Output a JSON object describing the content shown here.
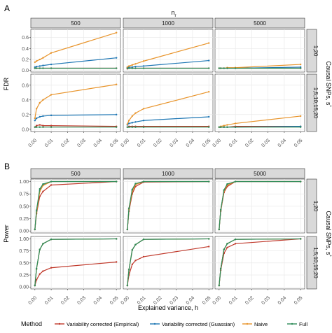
{
  "legend": {
    "title": "Method",
    "entries": [
      {
        "label": "Variability corrected (Empirical)",
        "color": "#c0392b"
      },
      {
        "label": "Variability corrected (Guassian)",
        "color": "#1f77b4"
      },
      {
        "label": "Naive",
        "color": "#e8942b"
      },
      {
        "label": "Full",
        "color": "#2e8b57"
      }
    ]
  },
  "chart_data": [
    {
      "type": "line",
      "panel_label": "A",
      "top_title": "n_r",
      "col_facets": [
        "500",
        "1000",
        "5000"
      ],
      "row_facet_title": "Causal SNPs, s",
      "row_facets": [
        "1,20",
        "1,5,10,15,20"
      ],
      "xlabel": "",
      "ylabel": "FDR",
      "x": [
        0.0,
        0.001,
        0.003,
        0.005,
        0.01,
        0.05
      ],
      "x_ticks": [
        "0.00",
        "0.01",
        "0.02",
        "0.03",
        "0.04",
        "0.05"
      ],
      "y_ticks": [
        "0.0",
        "0.2",
        "0.4",
        "0.6"
      ],
      "ylim": [
        -0.03,
        0.75
      ],
      "xlim": [
        -0.0025,
        0.0525
      ],
      "grid": true,
      "panels": [
        {
          "col": 0,
          "row": 0,
          "series": [
            {
              "name": "Variability corrected (Empirical)",
              "values": [
                0.04,
                0.04,
                0.04,
                0.04,
                0.04,
                0.04
              ]
            },
            {
              "name": "Variability corrected (Guassian)",
              "values": [
                0.06,
                0.07,
                0.08,
                0.09,
                0.11,
                0.23
              ]
            },
            {
              "name": "Naive",
              "values": [
                0.15,
                0.17,
                0.2,
                0.23,
                0.32,
                0.69
              ]
            },
            {
              "name": "Full",
              "values": [
                0.04,
                0.04,
                0.04,
                0.04,
                0.04,
                0.04
              ]
            }
          ]
        },
        {
          "col": 1,
          "row": 0,
          "series": [
            {
              "name": "Variability corrected (Empirical)",
              "values": [
                0.03,
                0.04,
                0.04,
                0.04,
                0.04,
                0.04
              ]
            },
            {
              "name": "Variability corrected (Guassian)",
              "values": [
                0.05,
                0.06,
                0.06,
                0.07,
                0.08,
                0.18
              ]
            },
            {
              "name": "Naive",
              "values": [
                0.06,
                0.08,
                0.1,
                0.12,
                0.17,
                0.5
              ]
            },
            {
              "name": "Full",
              "values": [
                0.04,
                0.04,
                0.04,
                0.04,
                0.04,
                0.04
              ]
            }
          ]
        },
        {
          "col": 2,
          "row": 0,
          "series": [
            {
              "name": "Variability corrected (Empirical)",
              "values": [
                0.04,
                0.04,
                0.04,
                0.04,
                0.04,
                0.04
              ]
            },
            {
              "name": "Variability corrected (Guassian)",
              "values": [
                0.04,
                0.04,
                0.04,
                0.04,
                0.04,
                0.06
              ]
            },
            {
              "name": "Naive",
              "values": [
                0.04,
                0.04,
                0.04,
                0.05,
                0.05,
                0.11
              ]
            },
            {
              "name": "Full",
              "values": [
                0.04,
                0.04,
                0.04,
                0.04,
                0.04,
                0.04
              ]
            }
          ]
        },
        {
          "col": 0,
          "row": 1,
          "series": [
            {
              "name": "Variability corrected (Empirical)",
              "values": [
                0.03,
                0.05,
                0.06,
                0.05,
                0.05,
                0.04
              ]
            },
            {
              "name": "Variability corrected (Guassian)",
              "values": [
                0.12,
                0.15,
                0.17,
                0.18,
                0.19,
                0.2
              ]
            },
            {
              "name": "Naive",
              "values": [
                0.15,
                0.28,
                0.36,
                0.4,
                0.47,
                0.61
              ]
            },
            {
              "name": "Full",
              "values": [
                0.03,
                0.03,
                0.03,
                0.03,
                0.03,
                0.03
              ]
            }
          ]
        },
        {
          "col": 1,
          "row": 1,
          "series": [
            {
              "name": "Variability corrected (Empirical)",
              "values": [
                0.03,
                0.04,
                0.04,
                0.04,
                0.04,
                0.04
              ]
            },
            {
              "name": "Variability corrected (Guassian)",
              "values": [
                0.06,
                0.08,
                0.09,
                0.1,
                0.12,
                0.17
              ]
            },
            {
              "name": "Naive",
              "values": [
                0.07,
                0.12,
                0.18,
                0.22,
                0.28,
                0.51
              ]
            },
            {
              "name": "Full",
              "values": [
                0.03,
                0.03,
                0.03,
                0.03,
                0.03,
                0.03
              ]
            }
          ]
        },
        {
          "col": 2,
          "row": 1,
          "series": [
            {
              "name": "Variability corrected (Empirical)",
              "values": [
                0.03,
                0.03,
                0.03,
                0.03,
                0.04,
                0.04
              ]
            },
            {
              "name": "Variability corrected (Guassian)",
              "values": [
                0.03,
                0.03,
                0.03,
                0.03,
                0.03,
                0.04
              ]
            },
            {
              "name": "Naive",
              "values": [
                0.03,
                0.04,
                0.05,
                0.06,
                0.08,
                0.18
              ]
            },
            {
              "name": "Full",
              "values": [
                0.03,
                0.03,
                0.03,
                0.03,
                0.03,
                0.03
              ]
            }
          ]
        }
      ]
    },
    {
      "type": "line",
      "panel_label": "B",
      "top_title": "",
      "col_facets": [
        "500",
        "1000",
        "5000"
      ],
      "row_facet_title": "Causal SNPs, s",
      "row_facets": [
        "1,20",
        "1,5,10,15,20"
      ],
      "xlabel": "Explained variance, h",
      "ylabel": "Power",
      "x": [
        0.0,
        0.001,
        0.003,
        0.005,
        0.01,
        0.05
      ],
      "x_ticks": [
        "0.00",
        "0.01",
        "0.02",
        "0.03",
        "0.04",
        "0.05"
      ],
      "y_ticks": [
        "0.00",
        "0.25",
        "0.50",
        "0.75",
        "1.00"
      ],
      "ylim": [
        -0.04,
        1.05
      ],
      "xlim": [
        -0.0025,
        0.0525
      ],
      "grid": true,
      "panels": [
        {
          "col": 0,
          "row": 0,
          "series": [
            {
              "name": "Variability corrected (Empirical)",
              "values": [
                0.03,
                0.35,
                0.7,
                0.8,
                0.93,
                1.0
              ]
            },
            {
              "name": "Variability corrected (Guassian)",
              "values": [
                0.03,
                0.4,
                0.82,
                0.93,
                1.0,
                1.0
              ]
            },
            {
              "name": "Naive",
              "values": [
                0.03,
                0.38,
                0.8,
                0.92,
                1.0,
                1.0
              ]
            },
            {
              "name": "Full",
              "values": [
                0.03,
                0.42,
                0.85,
                0.95,
                1.0,
                1.0
              ]
            }
          ]
        },
        {
          "col": 1,
          "row": 0,
          "series": [
            {
              "name": "Variability corrected (Empirical)",
              "values": [
                0.03,
                0.4,
                0.75,
                0.9,
                0.99,
                1.0
              ]
            },
            {
              "name": "Variability corrected (Guassian)",
              "values": [
                0.03,
                0.45,
                0.82,
                0.95,
                1.0,
                1.0
              ]
            },
            {
              "name": "Naive",
              "values": [
                0.03,
                0.44,
                0.8,
                0.94,
                1.0,
                1.0
              ]
            },
            {
              "name": "Full",
              "values": [
                0.03,
                0.46,
                0.84,
                0.96,
                1.0,
                1.0
              ]
            }
          ]
        },
        {
          "col": 2,
          "row": 0,
          "series": [
            {
              "name": "Variability corrected (Empirical)",
              "values": [
                0.03,
                0.4,
                0.78,
                0.9,
                1.0,
                1.0
              ]
            },
            {
              "name": "Variability corrected (Guassian)",
              "values": [
                0.03,
                0.42,
                0.82,
                0.94,
                1.0,
                1.0
              ]
            },
            {
              "name": "Naive",
              "values": [
                0.03,
                0.42,
                0.81,
                0.93,
                1.0,
                1.0
              ]
            },
            {
              "name": "Full",
              "values": [
                0.03,
                0.43,
                0.83,
                0.95,
                1.0,
                1.0
              ]
            }
          ]
        },
        {
          "col": 0,
          "row": 1,
          "series": [
            {
              "name": "Variability corrected (Empirical)",
              "values": [
                0.03,
                0.15,
                0.27,
                0.33,
                0.4,
                0.52
              ]
            },
            {
              "name": "Variability corrected (Guassian)",
              "values": [
                0.03,
                0.38,
                0.78,
                0.9,
                0.99,
                1.0
              ]
            },
            {
              "name": "Naive",
              "values": [
                0.03,
                0.37,
                0.78,
                0.9,
                0.99,
                1.0
              ]
            },
            {
              "name": "Full",
              "values": [
                0.03,
                0.38,
                0.78,
                0.9,
                0.99,
                1.0
              ]
            }
          ]
        },
        {
          "col": 1,
          "row": 1,
          "series": [
            {
              "name": "Variability corrected (Empirical)",
              "values": [
                0.03,
                0.25,
                0.47,
                0.55,
                0.63,
                0.84
              ]
            },
            {
              "name": "Variability corrected (Guassian)",
              "values": [
                0.03,
                0.36,
                0.77,
                0.88,
                0.99,
                1.0
              ]
            },
            {
              "name": "Naive",
              "values": [
                0.03,
                0.36,
                0.77,
                0.88,
                0.99,
                1.0
              ]
            },
            {
              "name": "Full",
              "values": [
                0.03,
                0.36,
                0.77,
                0.88,
                0.99,
                1.0
              ]
            }
          ]
        },
        {
          "col": 2,
          "row": 1,
          "series": [
            {
              "name": "Variability corrected (Empirical)",
              "values": [
                0.03,
                0.35,
                0.7,
                0.82,
                0.9,
                1.0
              ]
            },
            {
              "name": "Variability corrected (Guassian)",
              "values": [
                0.03,
                0.38,
                0.78,
                0.9,
                0.99,
                1.0
              ]
            },
            {
              "name": "Naive",
              "values": [
                0.03,
                0.38,
                0.78,
                0.9,
                0.99,
                1.0
              ]
            },
            {
              "name": "Full",
              "values": [
                0.03,
                0.38,
                0.78,
                0.9,
                0.99,
                1.0
              ]
            }
          ]
        }
      ]
    }
  ]
}
